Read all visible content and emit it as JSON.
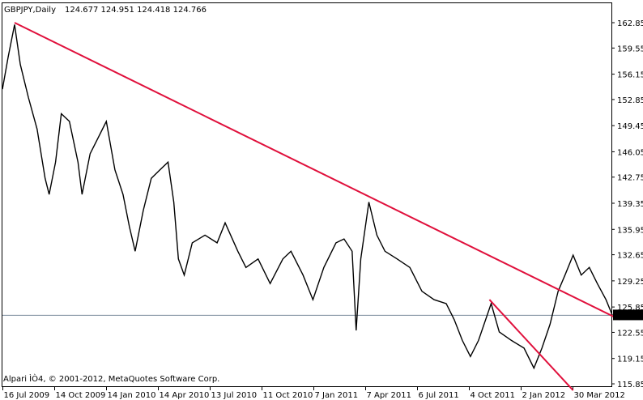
{
  "header": {
    "symbol_timeframe": "GBPJPY,Daily",
    "ohlc": "124.677 124.951 124.418 124.766"
  },
  "copyright": "Alpari ÌÒ4, © 2001-2012, MetaQuotes Software Corp.",
  "colors": {
    "price": "#000000",
    "trendline": "#e0103c",
    "bid_line": "#778899",
    "price_tag_bg": "#000000",
    "price_tag_text": "#ffffff"
  },
  "chart_data": {
    "type": "line",
    "title": "GBPJPY,Daily",
    "current_price": "124.766",
    "ylim": [
      115.85,
      162.85
    ],
    "grid": false,
    "y_ticks": [
      "162.850",
      "159.550",
      "156.150",
      "152.850",
      "149.450",
      "146.050",
      "142.750",
      "139.350",
      "135.950",
      "132.650",
      "129.250",
      "125.850",
      "122.550",
      "119.150",
      "115.850"
    ],
    "x_ticks": [
      {
        "date": "2009-07-16",
        "label": "16 Jul 2009"
      },
      {
        "date": "2009-10-14",
        "label": "14 Oct 2009"
      },
      {
        "date": "2010-01-14",
        "label": "14 Jan 2010"
      },
      {
        "date": "2010-04-14",
        "label": "14 Apr 2010"
      },
      {
        "date": "2010-07-13",
        "label": "13 Jul 2010"
      },
      {
        "date": "2010-10-11",
        "label": "11 Oct 2010"
      },
      {
        "date": "2011-01-07",
        "label": "7 Jan 2011"
      },
      {
        "date": "2011-04-07",
        "label": "7 Apr 2011"
      },
      {
        "date": "2011-07-06",
        "label": "6 Jul 2011"
      },
      {
        "date": "2011-10-04",
        "label": "4 Oct 2011"
      },
      {
        "date": "2012-01-02",
        "label": "2 Jan 2012"
      },
      {
        "date": "2012-03-30",
        "label": "30 Mar 2012"
      }
    ],
    "series": [
      {
        "points": [
          [
            "2009-07-16",
            154.2
          ],
          [
            "2009-07-26",
            158.4
          ],
          [
            "2009-08-06",
            162.6
          ],
          [
            "2009-08-16",
            157.4
          ],
          [
            "2009-08-30",
            153.1
          ],
          [
            "2009-09-14",
            149.0
          ],
          [
            "2009-09-28",
            142.6
          ],
          [
            "2009-10-05",
            140.5
          ],
          [
            "2009-10-16",
            144.7
          ],
          [
            "2009-10-26",
            151.0
          ],
          [
            "2009-11-09",
            150.0
          ],
          [
            "2009-11-24",
            144.7
          ],
          [
            "2009-12-01",
            140.5
          ],
          [
            "2009-12-15",
            145.8
          ],
          [
            "2009-12-29",
            147.9
          ],
          [
            "2010-01-12",
            150.0
          ],
          [
            "2010-01-27",
            143.7
          ],
          [
            "2010-02-10",
            140.5
          ],
          [
            "2010-02-21",
            136.3
          ],
          [
            "2010-03-03",
            133.1
          ],
          [
            "2010-03-17",
            138.4
          ],
          [
            "2010-03-31",
            142.6
          ],
          [
            "2010-04-15",
            143.7
          ],
          [
            "2010-04-29",
            144.7
          ],
          [
            "2010-05-09",
            139.5
          ],
          [
            "2010-05-17",
            132.1
          ],
          [
            "2010-05-27",
            130.0
          ],
          [
            "2010-06-10",
            134.2
          ],
          [
            "2010-07-02",
            135.2
          ],
          [
            "2010-07-23",
            134.2
          ],
          [
            "2010-08-06",
            136.8
          ],
          [
            "2010-08-28",
            133.1
          ],
          [
            "2010-09-11",
            131.0
          ],
          [
            "2010-10-02",
            132.1
          ],
          [
            "2010-10-23",
            128.9
          ],
          [
            "2010-11-14",
            132.1
          ],
          [
            "2010-11-28",
            133.1
          ],
          [
            "2010-12-19",
            130.0
          ],
          [
            "2011-01-05",
            126.8
          ],
          [
            "2011-01-24",
            131.0
          ],
          [
            "2011-02-14",
            134.2
          ],
          [
            "2011-02-28",
            134.7
          ],
          [
            "2011-03-14",
            133.1
          ],
          [
            "2011-03-21",
            122.8
          ],
          [
            "2011-03-29",
            132.1
          ],
          [
            "2011-04-12",
            139.5
          ],
          [
            "2011-04-26",
            135.2
          ],
          [
            "2011-05-10",
            133.1
          ],
          [
            "2011-05-31",
            132.1
          ],
          [
            "2011-06-22",
            131.0
          ],
          [
            "2011-07-13",
            127.9
          ],
          [
            "2011-08-03",
            126.8
          ],
          [
            "2011-08-24",
            126.3
          ],
          [
            "2011-09-07",
            124.2
          ],
          [
            "2011-09-21",
            121.5
          ],
          [
            "2011-10-05",
            119.4
          ],
          [
            "2011-10-19",
            121.5
          ],
          [
            "2011-11-10",
            126.3
          ],
          [
            "2011-11-24",
            122.6
          ],
          [
            "2011-12-15",
            121.5
          ],
          [
            "2012-01-06",
            120.5
          ],
          [
            "2012-01-23",
            117.9
          ],
          [
            "2012-02-06",
            120.5
          ],
          [
            "2012-02-20",
            123.6
          ],
          [
            "2012-03-05",
            127.9
          ],
          [
            "2012-03-17",
            130.0
          ],
          [
            "2012-03-31",
            132.6
          ],
          [
            "2012-04-14",
            130.0
          ],
          [
            "2012-04-28",
            131.0
          ],
          [
            "2012-05-12",
            128.9
          ],
          [
            "2012-05-27",
            126.8
          ],
          [
            "2012-06-07",
            124.766
          ]
        ]
      }
    ],
    "trendlines": [
      {
        "from": [
          "2009-08-06",
          162.85
        ],
        "to": [
          "2012-06-20",
          124.2
        ]
      },
      {
        "from": [
          "2011-11-07",
          126.8
        ],
        "to": [
          "2012-03-31",
          115.0
        ]
      }
    ]
  }
}
